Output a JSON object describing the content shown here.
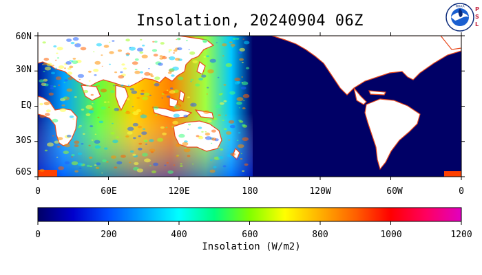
{
  "title": "Insolation, 20240904 06Z",
  "logo": {
    "ring_text": "NOAA",
    "side_text": [
      "P",
      "S",
      "L"
    ]
  },
  "map": {
    "projection": "cylindrical",
    "lon_range": [
      0,
      360
    ],
    "lat_range": [
      -60,
      60
    ],
    "lat_labels": [
      "60N",
      "30N",
      "EQ",
      "30S",
      "60S"
    ],
    "lon_labels": [
      "0",
      "60E",
      "120E",
      "180",
      "120W",
      "60W",
      "0"
    ],
    "ocean_night_color": "#000066",
    "land_color": "#ffffff",
    "coast_color": "#e8481c",
    "daylight_region_lon": [
      30,
      180
    ]
  },
  "colorbar": {
    "title": "Insolation (W/m2)",
    "labels": [
      "0",
      "200",
      "400",
      "600",
      "800",
      "1000",
      "1200"
    ],
    "range": [
      0,
      1200
    ],
    "stops": [
      "#000066",
      "#0000cc",
      "#0050ff",
      "#00a8ff",
      "#00ffff",
      "#00ff80",
      "#80ff00",
      "#ffff00",
      "#ffb000",
      "#ff6000",
      "#ff0000",
      "#ff0060",
      "#e000c0"
    ]
  }
}
